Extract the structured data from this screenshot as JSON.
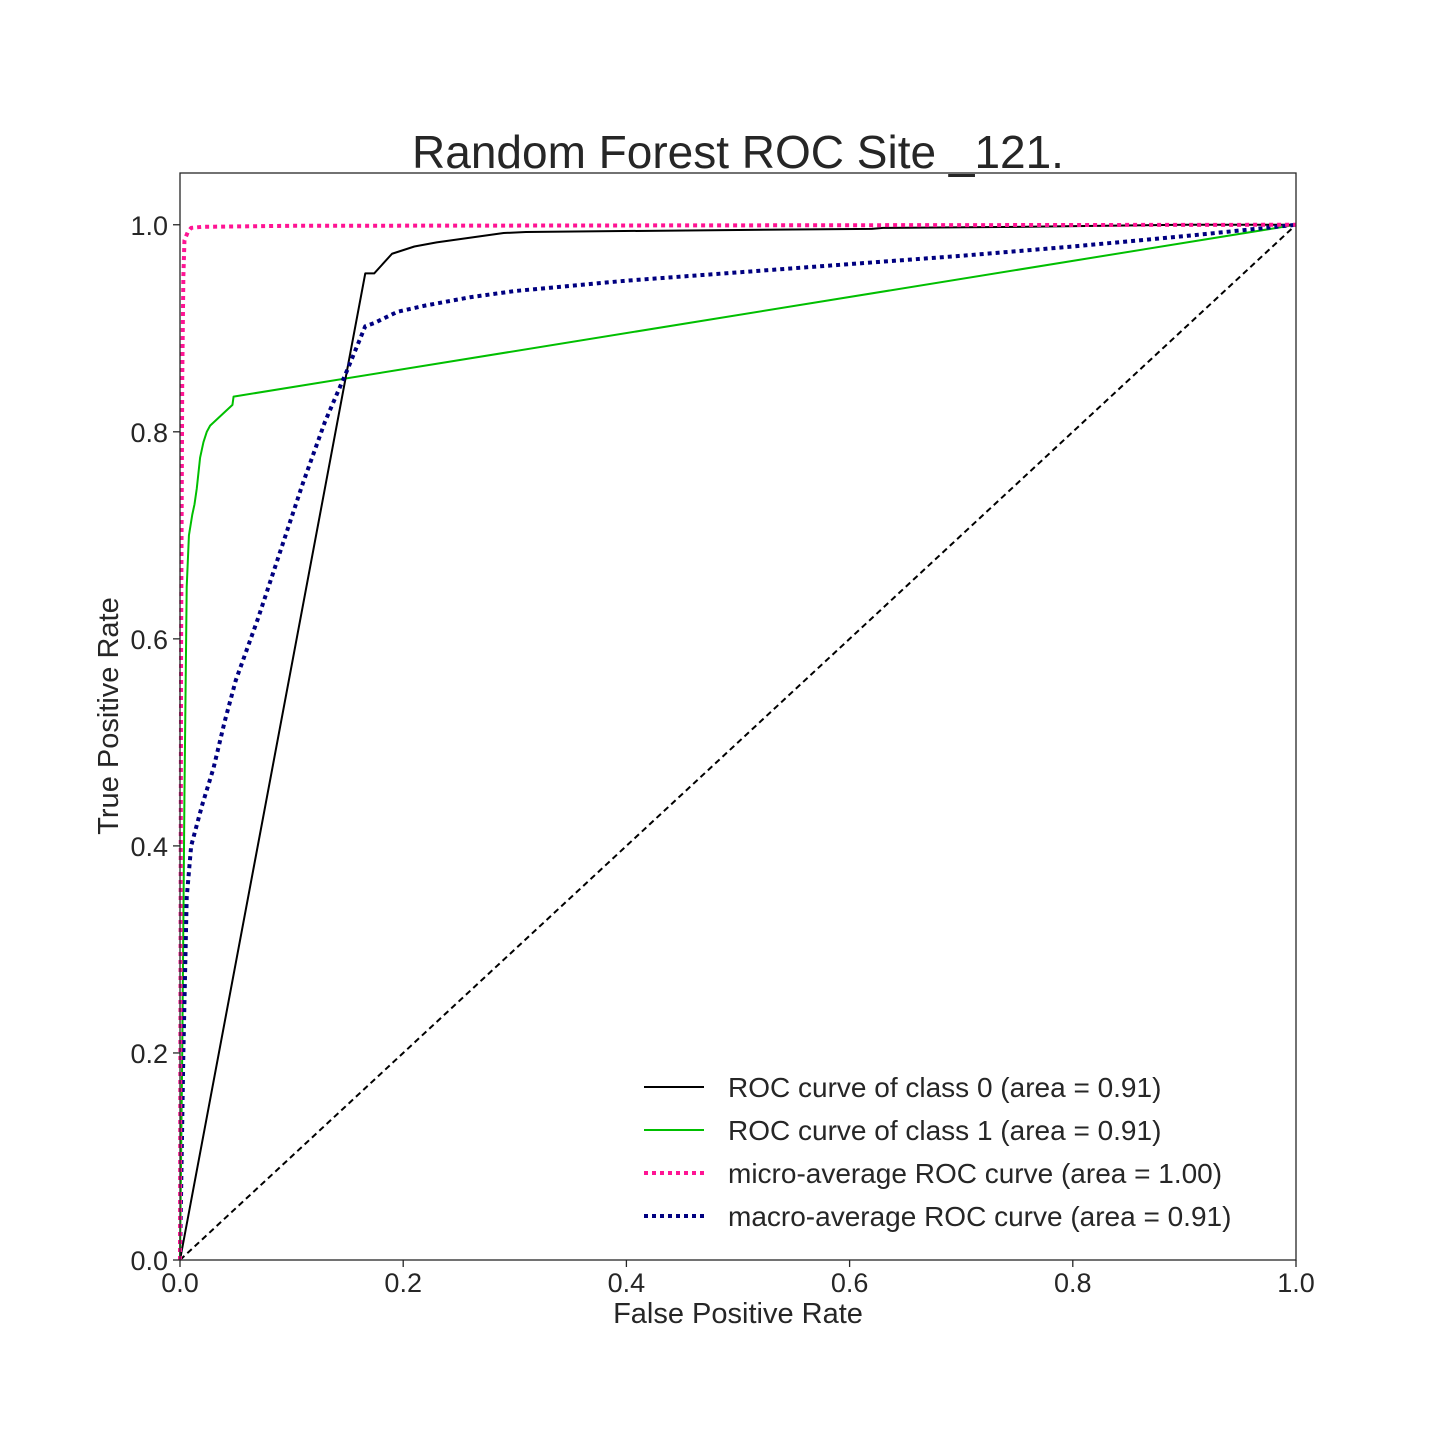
{
  "chart_data": {
    "type": "line",
    "title": "Random Forest ROC Site _121.",
    "xlabel": "False Positive Rate",
    "ylabel": "True Positive Rate",
    "xlim": [
      0.0,
      1.0
    ],
    "ylim": [
      0.0,
      1.05
    ],
    "x_ticks": [
      "0.0",
      "0.2",
      "0.4",
      "0.6",
      "0.8",
      "1.0"
    ],
    "y_ticks": [
      "0.0",
      "0.2",
      "0.4",
      "0.6",
      "0.8",
      "1.0"
    ],
    "grid": false,
    "legend_position": "lower-right",
    "series": [
      {
        "name": "ROC curve of class 0 (area = 0.91)",
        "color": "#000000",
        "style": "solid",
        "points": [
          [
            0.0,
            0.0
          ],
          [
            0.166,
            0.953
          ],
          [
            0.174,
            0.953
          ],
          [
            0.19,
            0.972
          ],
          [
            0.21,
            0.979
          ],
          [
            0.23,
            0.983
          ],
          [
            0.25,
            0.986
          ],
          [
            0.27,
            0.989
          ],
          [
            0.29,
            0.992
          ],
          [
            0.31,
            0.993
          ],
          [
            0.5,
            0.995
          ],
          [
            0.62,
            0.996
          ],
          [
            0.63,
            0.997
          ],
          [
            0.75,
            0.998
          ],
          [
            0.9,
            1.0
          ],
          [
            1.0,
            1.0
          ]
        ]
      },
      {
        "name": "ROC curve of class 1 (area = 0.91)",
        "color": "#00bf00",
        "style": "solid",
        "points": [
          [
            0.0,
            0.0
          ],
          [
            0.002,
            0.2
          ],
          [
            0.004,
            0.45
          ],
          [
            0.006,
            0.65
          ],
          [
            0.008,
            0.7
          ],
          [
            0.011,
            0.72
          ],
          [
            0.013,
            0.73
          ],
          [
            0.015,
            0.745
          ],
          [
            0.016,
            0.755
          ],
          [
            0.018,
            0.775
          ],
          [
            0.021,
            0.79
          ],
          [
            0.024,
            0.8
          ],
          [
            0.027,
            0.806
          ],
          [
            0.047,
            0.826
          ],
          [
            0.048,
            0.834
          ],
          [
            1.0,
            1.0
          ]
        ]
      },
      {
        "name": "micro-average ROC curve (area = 1.00)",
        "color": "#ff1493",
        "style": "dotted",
        "points": [
          [
            0.0,
            0.0
          ],
          [
            0.001,
            0.6
          ],
          [
            0.002,
            0.85
          ],
          [
            0.003,
            0.95
          ],
          [
            0.004,
            0.985
          ],
          [
            0.007,
            0.993
          ],
          [
            0.01,
            0.997
          ],
          [
            0.02,
            0.998
          ],
          [
            0.1,
            0.999
          ],
          [
            1.0,
            1.0
          ]
        ]
      },
      {
        "name": "macro-average ROC curve (area = 0.91)",
        "color": "#000080",
        "style": "dotted",
        "points": [
          [
            0.0,
            0.0
          ],
          [
            0.003,
            0.2
          ],
          [
            0.006,
            0.35
          ],
          [
            0.01,
            0.4
          ],
          [
            0.02,
            0.44
          ],
          [
            0.03,
            0.475
          ],
          [
            0.04,
            0.52
          ],
          [
            0.05,
            0.56
          ],
          [
            0.07,
            0.62
          ],
          [
            0.09,
            0.685
          ],
          [
            0.11,
            0.75
          ],
          [
            0.13,
            0.81
          ],
          [
            0.15,
            0.86
          ],
          [
            0.166,
            0.902
          ],
          [
            0.174,
            0.905
          ],
          [
            0.195,
            0.916
          ],
          [
            0.22,
            0.922
          ],
          [
            0.26,
            0.93
          ],
          [
            0.3,
            0.936
          ],
          [
            0.4,
            0.946
          ],
          [
            0.5,
            0.954
          ],
          [
            0.6,
            0.962
          ],
          [
            0.7,
            0.97
          ],
          [
            0.8,
            0.979
          ],
          [
            0.9,
            0.989
          ],
          [
            1.0,
            1.0
          ]
        ]
      }
    ],
    "reference_line": {
      "color": "#000000",
      "style": "dashed",
      "points": [
        [
          0.0,
          0.0
        ],
        [
          1.0,
          1.0
        ]
      ]
    }
  }
}
